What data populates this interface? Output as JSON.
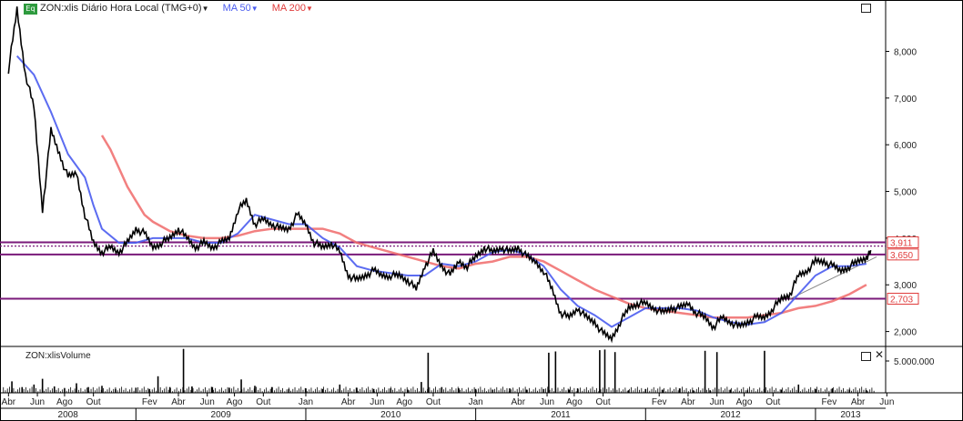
{
  "header": {
    "badge": "Eq",
    "symbol": "ZON:xlis Diário Hora Local (TMG+0)",
    "ma50": "MA 50",
    "ma200": "MA 200"
  },
  "volume_label": "ZON:xlisVolume",
  "colors": {
    "price": "#000000",
    "ma50": "#4a5cf0",
    "ma200": "#f06a6a",
    "level_line": "#7a1a7a",
    "badge": "#2e9b3e"
  },
  "chart_data": {
    "type": "line",
    "title": "ZON:xlis Diário Hora Local (TMG+0)",
    "yticks": [
      "2,000",
      "3,000",
      "4,000",
      "5,000",
      "6,000",
      "7,000",
      "8,000"
    ],
    "ylim": [
      1.7,
      9.1
    ],
    "volume_tick": "5.000.000",
    "volume_ylim": [
      0,
      7000000
    ],
    "months": [
      "Abr",
      "Jun",
      "Ago",
      "Out",
      "Fev",
      "Abr",
      "Jun",
      "Ago",
      "Out",
      "Jan",
      "Abr",
      "Jun",
      "Ago",
      "Out",
      "Jan",
      "Abr",
      "Jun",
      "Ago",
      "Out",
      "Fev",
      "Abr",
      "Jun",
      "Ago",
      "Out",
      "Fev",
      "Abr",
      "Jun"
    ],
    "years": [
      "2008",
      "2009",
      "2010",
      "2011",
      "2012",
      "2013"
    ],
    "horizontal_levels": [
      {
        "value": 3.911,
        "label": "3,911",
        "style": "solid"
      },
      {
        "value": 3.83,
        "label": "",
        "style": "dotted"
      },
      {
        "value": 3.65,
        "label": "3,650",
        "style": "solid"
      },
      {
        "value": 2.703,
        "label": "2,703",
        "style": "solid"
      }
    ],
    "price": [
      [
        2008.25,
        7.6
      ],
      [
        2008.3,
        8.9
      ],
      [
        2008.35,
        7.5
      ],
      [
        2008.4,
        6.8
      ],
      [
        2008.45,
        4.6
      ],
      [
        2008.5,
        6.3
      ],
      [
        2008.55,
        5.8
      ],
      [
        2008.6,
        5.3
      ],
      [
        2008.65,
        5.4
      ],
      [
        2008.7,
        4.5
      ],
      [
        2008.75,
        3.9
      ],
      [
        2008.8,
        3.7
      ],
      [
        2008.85,
        3.8
      ],
      [
        2008.9,
        3.7
      ],
      [
        2008.95,
        3.9
      ],
      [
        2009.0,
        4.2
      ],
      [
        2009.05,
        4.1
      ],
      [
        2009.1,
        3.8
      ],
      [
        2009.15,
        3.9
      ],
      [
        2009.2,
        4.0
      ],
      [
        2009.25,
        4.2
      ],
      [
        2009.3,
        4.0
      ],
      [
        2009.35,
        3.8
      ],
      [
        2009.4,
        3.9
      ],
      [
        2009.45,
        3.8
      ],
      [
        2009.5,
        3.9
      ],
      [
        2009.55,
        4.0
      ],
      [
        2009.6,
        4.6
      ],
      [
        2009.65,
        4.8
      ],
      [
        2009.7,
        4.3
      ],
      [
        2009.75,
        4.4
      ],
      [
        2009.8,
        4.3
      ],
      [
        2009.85,
        4.2
      ],
      [
        2009.9,
        4.2
      ],
      [
        2009.95,
        4.5
      ],
      [
        2010.0,
        4.3
      ],
      [
        2010.05,
        3.9
      ],
      [
        2010.1,
        3.8
      ],
      [
        2010.15,
        3.9
      ],
      [
        2010.2,
        3.7
      ],
      [
        2010.25,
        3.2
      ],
      [
        2010.3,
        3.1
      ],
      [
        2010.35,
        3.2
      ],
      [
        2010.4,
        3.3
      ],
      [
        2010.45,
        3.2
      ],
      [
        2010.5,
        3.2
      ],
      [
        2010.55,
        3.2
      ],
      [
        2010.6,
        3.1
      ],
      [
        2010.65,
        2.9
      ],
      [
        2010.7,
        3.4
      ],
      [
        2010.75,
        3.7
      ],
      [
        2010.8,
        3.4
      ],
      [
        2010.85,
        3.2
      ],
      [
        2010.9,
        3.5
      ],
      [
        2010.95,
        3.4
      ],
      [
        2011.0,
        3.6
      ],
      [
        2011.05,
        3.8
      ],
      [
        2011.1,
        3.7
      ],
      [
        2011.15,
        3.8
      ],
      [
        2011.2,
        3.7
      ],
      [
        2011.25,
        3.8
      ],
      [
        2011.3,
        3.6
      ],
      [
        2011.35,
        3.5
      ],
      [
        2011.4,
        3.3
      ],
      [
        2011.45,
        2.9
      ],
      [
        2011.5,
        2.4
      ],
      [
        2011.55,
        2.3
      ],
      [
        2011.6,
        2.5
      ],
      [
        2011.65,
        2.3
      ],
      [
        2011.7,
        2.2
      ],
      [
        2011.75,
        1.95
      ],
      [
        2011.8,
        1.85
      ],
      [
        2011.85,
        2.2
      ],
      [
        2011.9,
        2.5
      ],
      [
        2011.95,
        2.6
      ],
      [
        2012.0,
        2.6
      ],
      [
        2012.05,
        2.5
      ],
      [
        2012.1,
        2.4
      ],
      [
        2012.15,
        2.5
      ],
      [
        2012.2,
        2.5
      ],
      [
        2012.25,
        2.6
      ],
      [
        2012.3,
        2.4
      ],
      [
        2012.35,
        2.3
      ],
      [
        2012.4,
        2.1
      ],
      [
        2012.45,
        2.3
      ],
      [
        2012.5,
        2.2
      ],
      [
        2012.55,
        2.1
      ],
      [
        2012.6,
        2.2
      ],
      [
        2012.65,
        2.3
      ],
      [
        2012.7,
        2.3
      ],
      [
        2012.75,
        2.5
      ],
      [
        2012.8,
        2.7
      ],
      [
        2012.85,
        2.8
      ],
      [
        2012.9,
        3.2
      ],
      [
        2012.95,
        3.3
      ],
      [
        2013.0,
        3.5
      ],
      [
        2013.05,
        3.5
      ],
      [
        2013.1,
        3.4
      ],
      [
        2013.15,
        3.3
      ],
      [
        2013.2,
        3.4
      ],
      [
        2013.25,
        3.5
      ],
      [
        2013.3,
        3.6
      ],
      [
        2013.33,
        3.7
      ]
    ],
    "series": [
      {
        "name": "MA 50",
        "values": [
          [
            2008.3,
            7.9
          ],
          [
            2008.4,
            7.5
          ],
          [
            2008.5,
            6.7
          ],
          [
            2008.6,
            5.8
          ],
          [
            2008.7,
            5.3
          ],
          [
            2008.75,
            4.7
          ],
          [
            2008.8,
            4.2
          ],
          [
            2008.9,
            3.9
          ],
          [
            2009.0,
            3.9
          ],
          [
            2009.1,
            4.0
          ],
          [
            2009.2,
            4.0
          ],
          [
            2009.3,
            4.0
          ],
          [
            2009.4,
            3.9
          ],
          [
            2009.5,
            3.9
          ],
          [
            2009.6,
            4.1
          ],
          [
            2009.7,
            4.5
          ],
          [
            2009.8,
            4.4
          ],
          [
            2009.9,
            4.3
          ],
          [
            2010.0,
            4.3
          ],
          [
            2010.1,
            4.0
          ],
          [
            2010.2,
            3.8
          ],
          [
            2010.3,
            3.4
          ],
          [
            2010.4,
            3.3
          ],
          [
            2010.5,
            3.25
          ],
          [
            2010.6,
            3.2
          ],
          [
            2010.7,
            3.2
          ],
          [
            2010.8,
            3.45
          ],
          [
            2010.9,
            3.4
          ],
          [
            2011.0,
            3.5
          ],
          [
            2011.1,
            3.7
          ],
          [
            2011.2,
            3.75
          ],
          [
            2011.3,
            3.65
          ],
          [
            2011.4,
            3.4
          ],
          [
            2011.5,
            2.9
          ],
          [
            2011.6,
            2.55
          ],
          [
            2011.7,
            2.35
          ],
          [
            2011.8,
            2.1
          ],
          [
            2011.9,
            2.3
          ],
          [
            2012.0,
            2.5
          ],
          [
            2012.1,
            2.5
          ],
          [
            2012.2,
            2.5
          ],
          [
            2012.3,
            2.45
          ],
          [
            2012.4,
            2.3
          ],
          [
            2012.5,
            2.2
          ],
          [
            2012.6,
            2.15
          ],
          [
            2012.7,
            2.2
          ],
          [
            2012.8,
            2.4
          ],
          [
            2012.9,
            2.8
          ],
          [
            2013.0,
            3.2
          ],
          [
            2013.1,
            3.4
          ],
          [
            2013.2,
            3.4
          ],
          [
            2013.3,
            3.45
          ]
        ]
      },
      {
        "name": "MA 200",
        "values": [
          [
            2008.8,
            6.2
          ],
          [
            2008.85,
            5.9
          ],
          [
            2008.9,
            5.5
          ],
          [
            2008.95,
            5.1
          ],
          [
            2009.0,
            4.8
          ],
          [
            2009.05,
            4.5
          ],
          [
            2009.1,
            4.35
          ],
          [
            2009.2,
            4.15
          ],
          [
            2009.3,
            4.05
          ],
          [
            2009.4,
            4.0
          ],
          [
            2009.5,
            4.0
          ],
          [
            2009.6,
            4.05
          ],
          [
            2009.7,
            4.15
          ],
          [
            2009.8,
            4.2
          ],
          [
            2009.9,
            4.2
          ],
          [
            2010.0,
            4.2
          ],
          [
            2010.1,
            4.2
          ],
          [
            2010.2,
            4.1
          ],
          [
            2010.3,
            3.9
          ],
          [
            2010.4,
            3.8
          ],
          [
            2010.5,
            3.7
          ],
          [
            2010.6,
            3.6
          ],
          [
            2010.7,
            3.5
          ],
          [
            2010.8,
            3.4
          ],
          [
            2010.9,
            3.35
          ],
          [
            2011.0,
            3.45
          ],
          [
            2011.1,
            3.5
          ],
          [
            2011.2,
            3.6
          ],
          [
            2011.3,
            3.6
          ],
          [
            2011.4,
            3.5
          ],
          [
            2011.5,
            3.3
          ],
          [
            2011.6,
            3.1
          ],
          [
            2011.7,
            2.9
          ],
          [
            2011.8,
            2.75
          ],
          [
            2011.9,
            2.6
          ],
          [
            2012.0,
            2.5
          ],
          [
            2012.1,
            2.45
          ],
          [
            2012.2,
            2.4
          ],
          [
            2012.3,
            2.35
          ],
          [
            2012.4,
            2.3
          ],
          [
            2012.5,
            2.3
          ],
          [
            2012.6,
            2.3
          ],
          [
            2012.7,
            2.35
          ],
          [
            2012.8,
            2.4
          ],
          [
            2012.9,
            2.5
          ],
          [
            2013.0,
            2.55
          ],
          [
            2013.1,
            2.65
          ],
          [
            2013.2,
            2.8
          ],
          [
            2013.3,
            3.0
          ]
        ]
      }
    ],
    "volume": [
      [
        2008.27,
        1800000
      ],
      [
        2008.33,
        900000
      ],
      [
        2008.4,
        1300000
      ],
      [
        2008.45,
        2200000
      ],
      [
        2008.52,
        1000000
      ],
      [
        2008.58,
        700000
      ],
      [
        2008.65,
        1500000
      ],
      [
        2008.72,
        900000
      ],
      [
        2008.8,
        1100000
      ],
      [
        2008.88,
        600000
      ],
      [
        2009.0,
        800000
      ],
      [
        2009.08,
        600000
      ],
      [
        2009.13,
        2600000
      ],
      [
        2009.2,
        900000
      ],
      [
        2009.28,
        6900000
      ],
      [
        2009.33,
        1000000
      ],
      [
        2009.45,
        900000
      ],
      [
        2009.55,
        800000
      ],
      [
        2009.62,
        2100000
      ],
      [
        2009.7,
        1100000
      ],
      [
        2009.8,
        900000
      ],
      [
        2009.9,
        600000
      ],
      [
        2010.0,
        700000
      ],
      [
        2010.1,
        600000
      ],
      [
        2010.2,
        1300000
      ],
      [
        2010.3,
        800000
      ],
      [
        2010.4,
        600000
      ],
      [
        2010.5,
        700000
      ],
      [
        2010.6,
        500000
      ],
      [
        2010.68,
        1700000
      ],
      [
        2010.72,
        6300000
      ],
      [
        2010.8,
        900000
      ],
      [
        2010.9,
        700000
      ],
      [
        2011.0,
        600000
      ],
      [
        2011.1,
        500000
      ],
      [
        2011.2,
        700000
      ],
      [
        2011.3,
        500000
      ],
      [
        2011.4,
        600000
      ],
      [
        2011.43,
        6300000
      ],
      [
        2011.47,
        6500000
      ],
      [
        2011.55,
        500000
      ],
      [
        2011.6,
        700000
      ],
      [
        2011.73,
        6700000
      ],
      [
        2011.76,
        6800000
      ],
      [
        2011.82,
        6400000
      ],
      [
        2011.9,
        400000
      ],
      [
        2012.0,
        600000
      ],
      [
        2012.1,
        500000
      ],
      [
        2012.2,
        700000
      ],
      [
        2012.28,
        400000
      ],
      [
        2012.35,
        6600000
      ],
      [
        2012.38,
        400000
      ],
      [
        2012.42,
        6400000
      ],
      [
        2012.5,
        500000
      ],
      [
        2012.6,
        400000
      ],
      [
        2012.7,
        6600000
      ],
      [
        2012.8,
        500000
      ],
      [
        2012.9,
        1300000
      ],
      [
        2013.0,
        600000
      ],
      [
        2013.1,
        700000
      ],
      [
        2013.2,
        500000
      ],
      [
        2013.3,
        400000
      ]
    ]
  }
}
